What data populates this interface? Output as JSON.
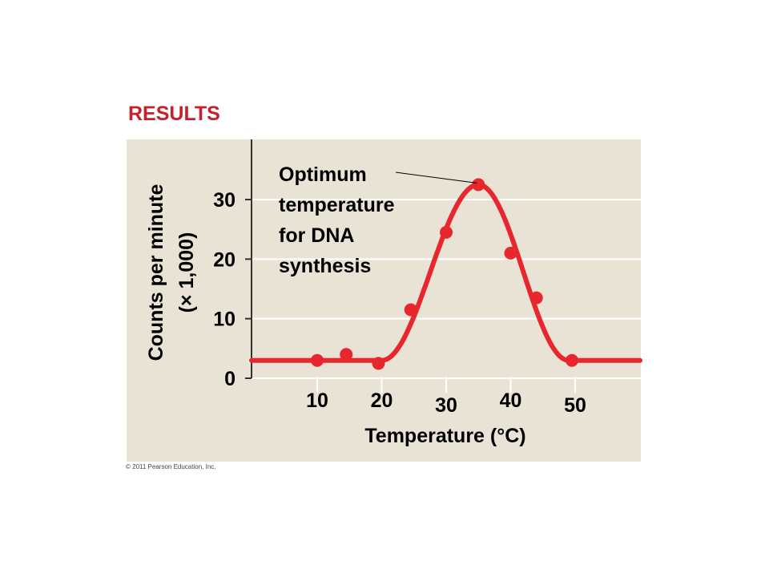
{
  "heading": "RESULTS",
  "copyright": "© 2011 Pearson Education, Inc.",
  "colors": {
    "accent": "#c8202a",
    "curve": "#e8262d",
    "panel": "#e8e3d5",
    "grid": "#ffffff",
    "axis": "#333333"
  },
  "chart_data": {
    "type": "scatter",
    "title": "",
    "xlabel": "Temperature (°C)",
    "ylabel_line1": "Counts per minute",
    "ylabel_line2": "(× 1,000)",
    "xlim": [
      0,
      60
    ],
    "ylim": [
      0,
      38
    ],
    "x_ticks": [
      10,
      20,
      30,
      40,
      50
    ],
    "x_tick_labels": [
      "10",
      "20",
      "30",
      "40",
      "50"
    ],
    "y_ticks": [
      0,
      10,
      20,
      30
    ],
    "y_tick_labels": [
      "0",
      "10",
      "20",
      "30"
    ],
    "grid": true,
    "points": [
      {
        "x": 10,
        "y": 3
      },
      {
        "x": 14.5,
        "y": 4
      },
      {
        "x": 19.5,
        "y": 2.5
      },
      {
        "x": 24.5,
        "y": 11.5
      },
      {
        "x": 30,
        "y": 24.5
      },
      {
        "x": 35,
        "y": 32.5
      },
      {
        "x": 40,
        "y": 21
      },
      {
        "x": 44,
        "y": 13.5
      },
      {
        "x": 49.5,
        "y": 3
      }
    ],
    "fit_curve": {
      "baseline": 3,
      "rise_start_x": 20,
      "peak_x": 35,
      "peak_y": 32.5,
      "fall_end_x": 49
    },
    "annotation": {
      "lines": [
        "Optimum",
        "temperature",
        "for DNA",
        "synthesis"
      ],
      "points_to": {
        "x": 35,
        "y": 32.5
      }
    }
  }
}
